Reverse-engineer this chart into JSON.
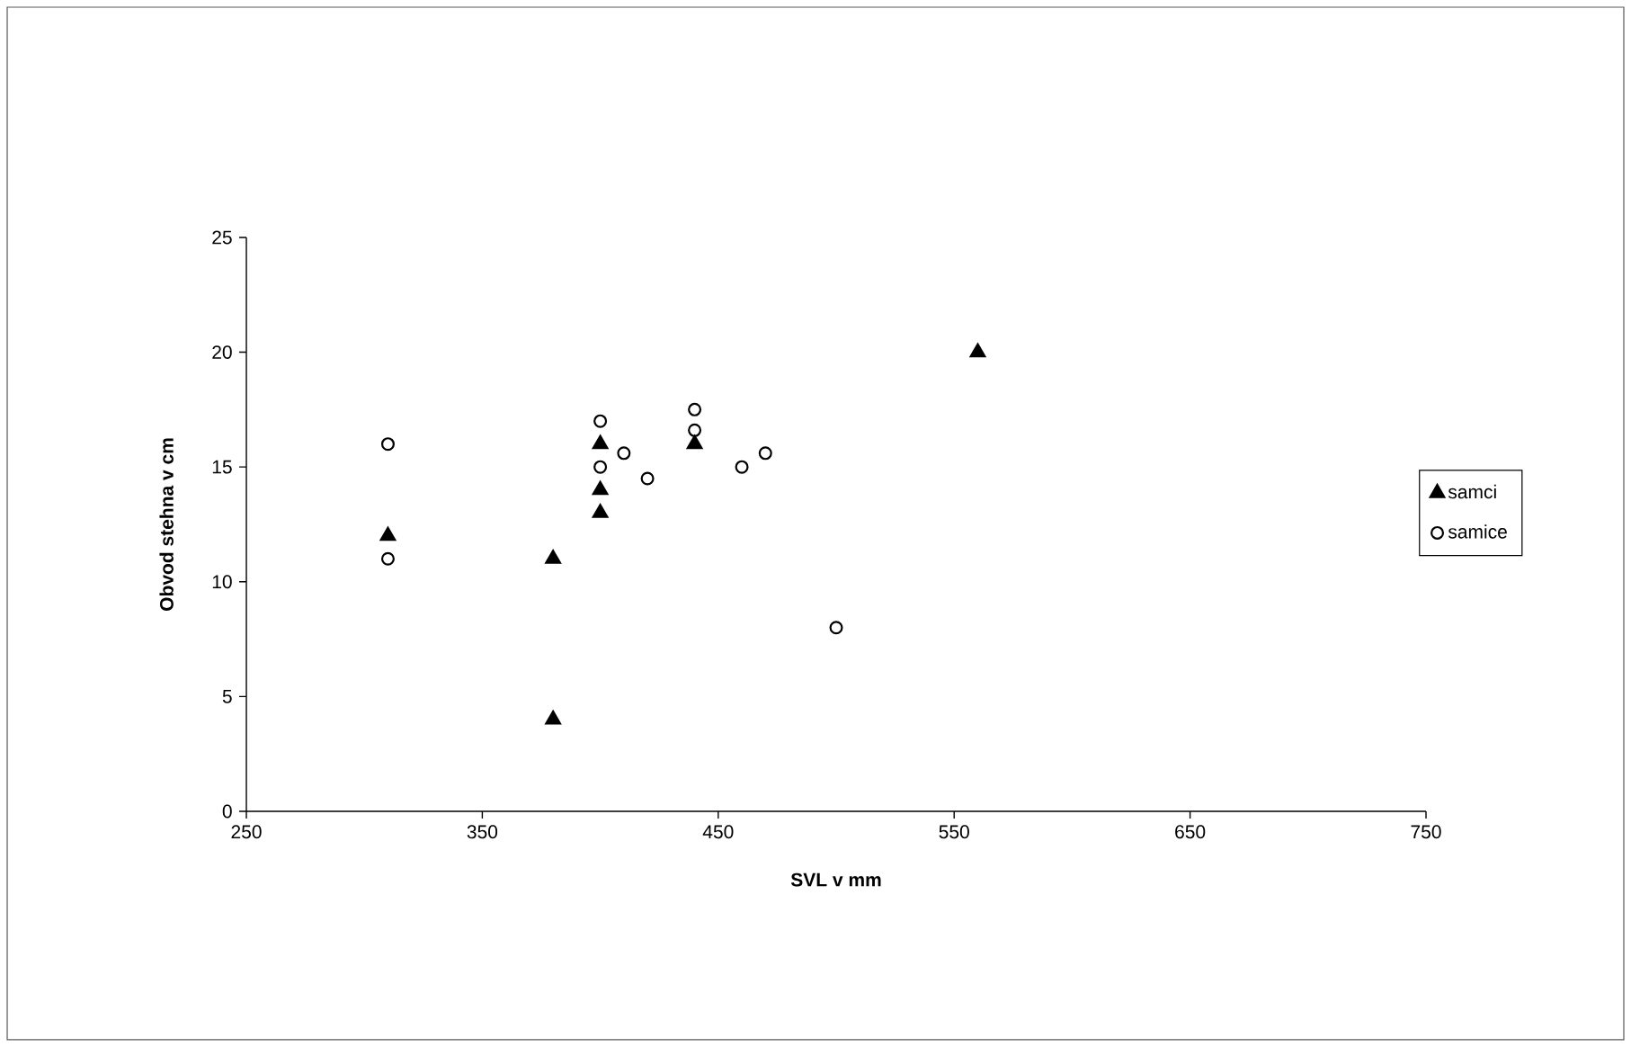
{
  "chart_data": {
    "type": "scatter",
    "xlabel": "SVL v mm",
    "ylabel": "Obvod stehna v cm",
    "xlim": [
      250,
      750
    ],
    "ylim": [
      0,
      25
    ],
    "xticks": [
      250,
      350,
      450,
      550,
      650,
      750
    ],
    "yticks": [
      0,
      5,
      10,
      15,
      20,
      25
    ],
    "grid": false,
    "legend": "right",
    "series": [
      {
        "name": "samci",
        "color": "#000000",
        "marker": "triangle",
        "x": [
          310,
          380,
          380,
          400,
          400,
          400,
          440,
          560
        ],
        "values": [
          12,
          11,
          4,
          16,
          14,
          13,
          16,
          20
        ]
      },
      {
        "name": "samice",
        "color": "#000000",
        "marker": "circle",
        "x": [
          310,
          310,
          400,
          400,
          410,
          420,
          440,
          440,
          460,
          470,
          500
        ],
        "values": [
          16,
          11,
          17,
          15,
          15.6,
          14.5,
          17.5,
          16.6,
          15,
          15.6,
          8
        ]
      }
    ]
  }
}
